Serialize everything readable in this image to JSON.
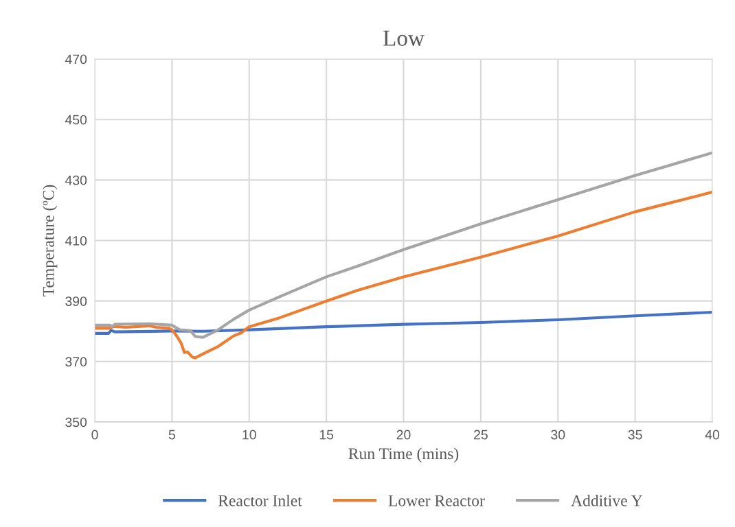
{
  "chart_data": {
    "type": "line",
    "title": "Low",
    "xlabel": "Run Time (mins)",
    "ylabel": "Temperature (ºC)",
    "xlim": [
      0,
      40
    ],
    "xticks": [
      0,
      5,
      10,
      15,
      20,
      25,
      30,
      35,
      40
    ],
    "ylim": [
      350,
      470
    ],
    "yticks": [
      350,
      370,
      390,
      410,
      430,
      450,
      470
    ],
    "grid": true,
    "legend": "bottom",
    "marker": "none",
    "line_style": "solid",
    "series": [
      {
        "name": "Reactor Inlet",
        "color": "#4472c4",
        "x": [
          0,
          0.9,
          1.05,
          1.3,
          3,
          5,
          7,
          10,
          15,
          20,
          25,
          30,
          35,
          40
        ],
        "values": [
          379.3,
          379.3,
          380.3,
          379.8,
          379.9,
          380.1,
          380.0,
          380.5,
          381.5,
          382.3,
          382.9,
          383.8,
          385.1,
          386.3
        ]
      },
      {
        "name": "Lower Reactor",
        "color": "#ed7d31",
        "x": [
          0,
          1,
          1.2,
          2,
          3.5,
          4,
          4.8,
          5,
          5.3,
          5.6,
          5.8,
          6.0,
          6.3,
          6.5,
          7,
          8,
          9,
          9.5,
          10,
          12,
          15,
          17,
          20,
          25,
          30,
          35,
          40
        ],
        "values": [
          381,
          381,
          381.6,
          381.3,
          381.8,
          381.3,
          381,
          380.5,
          378.5,
          376,
          373,
          373.2,
          371.5,
          371.2,
          372.5,
          375,
          378.5,
          379.5,
          381.5,
          384.5,
          390,
          393.5,
          398,
          404.5,
          411.5,
          419.5,
          426
        ]
      },
      {
        "name": "Additive Y",
        "color": "#a5a5a5",
        "x": [
          0,
          1,
          1.1,
          1.3,
          3.5,
          5,
          5.5,
          6.2,
          6.5,
          7,
          8,
          9,
          10,
          12,
          15,
          17,
          20,
          25,
          30,
          35,
          40
        ],
        "values": [
          382,
          382,
          381.5,
          382.3,
          382.5,
          382,
          380.5,
          380.2,
          378.3,
          378,
          380.5,
          384,
          387,
          391.5,
          398,
          401.5,
          407,
          415.5,
          423.5,
          431.5,
          439
        ]
      }
    ]
  }
}
